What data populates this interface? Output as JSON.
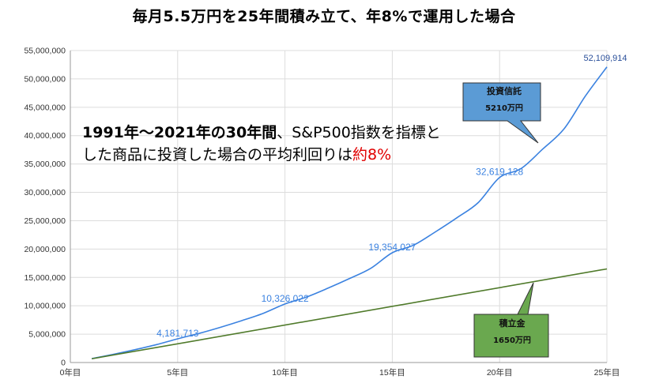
{
  "chart_data": {
    "type": "line",
    "title": "毎月5.5万円を25年間積み立て、年8%で運用した場合",
    "x_ticks": [
      "0年目",
      "5年目",
      "10年目",
      "15年目",
      "20年目",
      "25年目"
    ],
    "x_range": [
      0,
      25
    ],
    "y_ticks": [
      "0",
      "5,000,000",
      "10,000,000",
      "15,000,000",
      "20,000,000",
      "25,000,000",
      "30,000,000",
      "35,000,000",
      "40,000,000",
      "45,000,000",
      "50,000,000",
      "55,000,000"
    ],
    "ylim": [
      0,
      55000000
    ],
    "grid": true,
    "series": [
      {
        "key": "investment",
        "color": "#3b82e0",
        "points": [
          [
            1,
            690000
          ],
          [
            2,
            1440000
          ],
          [
            3,
            2250000
          ],
          [
            4,
            3140000
          ],
          [
            5,
            4181713
          ],
          [
            6,
            5140000
          ],
          [
            7,
            6220000
          ],
          [
            8,
            7400000
          ],
          [
            9,
            8690000
          ],
          [
            10,
            10326022
          ],
          [
            11,
            11540000
          ],
          [
            12,
            13100000
          ],
          [
            13,
            14790000
          ],
          [
            14,
            16610000
          ],
          [
            15,
            19354027
          ],
          [
            16,
            20700000
          ],
          [
            17,
            23010000
          ],
          [
            18,
            25490000
          ],
          [
            19,
            28180000
          ],
          [
            20,
            32619128
          ],
          [
            21,
            34190000
          ],
          [
            22,
            37600000
          ],
          [
            23,
            41180000
          ],
          [
            24,
            47000000
          ],
          [
            25,
            52109914
          ]
        ],
        "labels": [
          {
            "x": 5,
            "y": 4181713,
            "text": "4,181,713"
          },
          {
            "x": 10,
            "y": 10326022,
            "text": "10,326,022"
          },
          {
            "x": 15,
            "y": 19354027,
            "text": "19,354,027"
          },
          {
            "x": 20,
            "y": 32619128,
            "text": "32,619,128"
          },
          {
            "x": 25,
            "y": 52109914,
            "text": "52,109,914"
          }
        ]
      },
      {
        "key": "principal",
        "color": "#4f7a2a",
        "points": [
          [
            1,
            660000
          ],
          [
            25,
            16500000
          ]
        ]
      }
    ],
    "callouts": [
      {
        "key": "investment",
        "title": "投資信託",
        "value": "5210万円",
        "fill": "#5b9bd5",
        "stroke": "#333333"
      },
      {
        "key": "principal",
        "title": "積立金",
        "value": "1650万円",
        "fill": "#6aa84f",
        "stroke": "#333333"
      }
    ]
  },
  "annotation": {
    "part1": "1991年～2021年の30年間",
    "part2": "、S&P500指数を指標と",
    "part3": "した商品に投資した場合の平均利回りは",
    "part4": "約8%"
  }
}
